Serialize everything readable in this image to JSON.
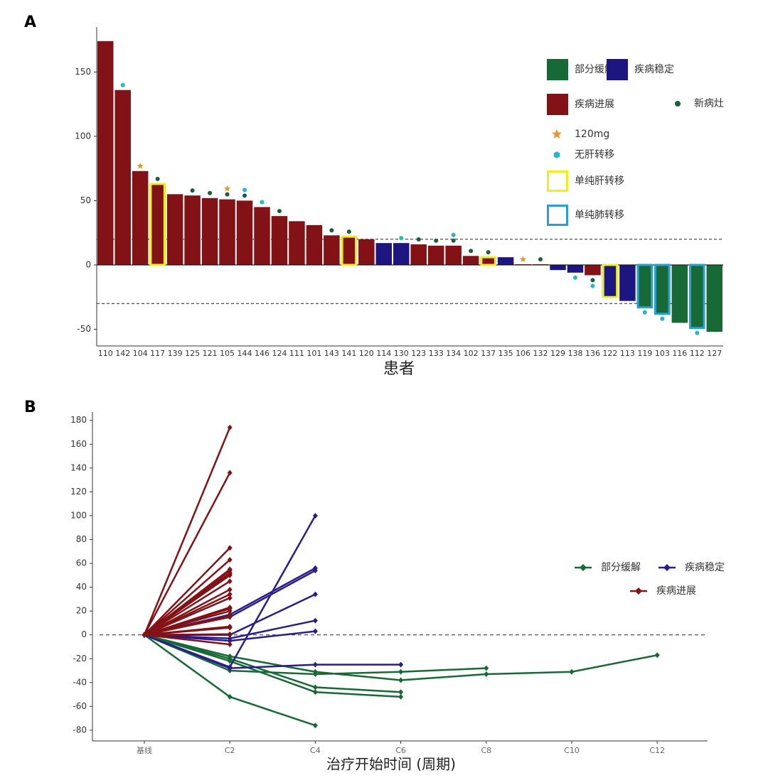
{
  "chart_data": [
    {
      "type": "waterfall",
      "panel_label": "A",
      "x_label": "患者",
      "categories": [
        "110",
        "142",
        "104",
        "117",
        "139",
        "125",
        "121",
        "105",
        "144",
        "146",
        "124",
        "111",
        "101",
        "143",
        "141",
        "120",
        "114",
        "130",
        "123",
        "133",
        "134",
        "102",
        "137",
        "135",
        "106",
        "132",
        "129",
        "138",
        "136",
        "122",
        "113",
        "119",
        "103",
        "116",
        "112",
        "127"
      ],
      "series": [
        {
          "name": "部分缓解",
          "color": "#176a35",
          "values": [
            null,
            null,
            null,
            null,
            null,
            null,
            null,
            null,
            null,
            null,
            null,
            null,
            null,
            null,
            null,
            null,
            null,
            null,
            null,
            null,
            null,
            null,
            null,
            null,
            null,
            null,
            null,
            null,
            null,
            null,
            null,
            -33,
            -38,
            -45,
            -49,
            -52
          ]
        },
        {
          "name": "疾病稳定",
          "color": "#1d1580",
          "values": [
            null,
            null,
            null,
            null,
            null,
            null,
            null,
            null,
            null,
            null,
            null,
            null,
            null,
            null,
            null,
            null,
            17,
            17,
            null,
            null,
            null,
            null,
            null,
            6,
            null,
            null,
            -4,
            -6,
            null,
            -25,
            -28,
            null,
            null,
            null,
            null,
            null
          ]
        },
        {
          "name": "疾病进展",
          "color": "#821216",
          "values": [
            174,
            136,
            73,
            63,
            55,
            54,
            52,
            51,
            50,
            45,
            38,
            34,
            31,
            23,
            22,
            20,
            null,
            null,
            16,
            15,
            15,
            7,
            6,
            null,
            0.5,
            0.5,
            null,
            null,
            -8,
            null,
            null,
            null,
            null,
            null,
            null,
            null
          ]
        }
      ],
      "markers": [
        {
          "name": "新病灶",
          "color": "#1b5e3a",
          "shape": "circle",
          "patients": [
            "117",
            "125",
            "121",
            "105",
            "144",
            "124",
            "143",
            "141",
            "123",
            "133",
            "134",
            "102",
            "137",
            "132",
            "136"
          ]
        },
        {
          "name": "120mg",
          "color": "#e8962e",
          "shape": "star",
          "patients": [
            "104",
            "105",
            "106"
          ]
        },
        {
          "name": "无肝转移",
          "color": "#2bb5c8",
          "shape": "hexagon",
          "patients": [
            "142",
            "144",
            "146",
            "130",
            "134",
            "138",
            "136",
            "119",
            "103",
            "112"
          ]
        }
      ],
      "boxes": [
        {
          "name": "单纯肝转移",
          "color": "#eef01e",
          "patients": [
            "117",
            "141",
            "137",
            "122"
          ]
        },
        {
          "name": "单纯肺转移",
          "color": "#2a9fd6",
          "patients": [
            "119",
            "103",
            "112"
          ]
        }
      ],
      "reference_lines": [
        20,
        -30
      ],
      "ylim": [
        -63,
        185
      ],
      "yticks": [
        -50,
        0,
        50,
        100,
        150
      ]
    },
    {
      "type": "line",
      "panel_label": "B",
      "x_label": "治疗开始时间 (周期)",
      "categories": [
        "基线",
        "C2",
        "C4",
        "C6",
        "C8",
        "C10",
        "C12"
      ],
      "series": [
        {
          "name": "部分缓解",
          "color": "#176a35",
          "lines": [
            [
              0,
              -52,
              -76,
              null,
              null,
              null,
              null
            ],
            [
              0,
              -20,
              -44,
              -48,
              null,
              null,
              null
            ],
            [
              0,
              -22,
              -48,
              -52,
              null,
              null,
              null
            ],
            [
              0,
              -30,
              -33,
              -31,
              -28,
              null,
              null
            ],
            [
              0,
              -18,
              -31,
              -38,
              -33,
              -31,
              -17
            ]
          ]
        },
        {
          "name": "疾病稳定",
          "color": "#2a1d8a",
          "lines": [
            [
              0,
              -27,
              100,
              null,
              null,
              null,
              null
            ],
            [
              0,
              17,
              56,
              null,
              null,
              null,
              null
            ],
            [
              0,
              15,
              54,
              null,
              null,
              null,
              null
            ],
            [
              0,
              0,
              34,
              null,
              null,
              null,
              null
            ],
            [
              0,
              -3,
              12,
              null,
              null,
              null,
              null
            ],
            [
              0,
              -5,
              3,
              null,
              null,
              null,
              null
            ],
            [
              0,
              -28,
              -25,
              -25,
              null,
              null,
              null
            ]
          ]
        },
        {
          "name": "疾病进展",
          "color": "#821216",
          "lines": [
            [
              0,
              174,
              null,
              null,
              null,
              null,
              null
            ],
            [
              0,
              136,
              null,
              null,
              null,
              null,
              null
            ],
            [
              0,
              73,
              null,
              null,
              null,
              null,
              null
            ],
            [
              0,
              63,
              null,
              null,
              null,
              null,
              null
            ],
            [
              0,
              55,
              null,
              null,
              null,
              null,
              null
            ],
            [
              0,
              54,
              null,
              null,
              null,
              null,
              null
            ],
            [
              0,
              52,
              null,
              null,
              null,
              null,
              null
            ],
            [
              0,
              51,
              null,
              null,
              null,
              null,
              null
            ],
            [
              0,
              50,
              null,
              null,
              null,
              null,
              null
            ],
            [
              0,
              45,
              null,
              null,
              null,
              null,
              null
            ],
            [
              0,
              38,
              null,
              null,
              null,
              null,
              null
            ],
            [
              0,
              34,
              null,
              null,
              null,
              null,
              null
            ],
            [
              0,
              31,
              null,
              null,
              null,
              null,
              null
            ],
            [
              0,
              23,
              null,
              null,
              null,
              null,
              null
            ],
            [
              0,
              22,
              null,
              null,
              null,
              null,
              null
            ],
            [
              0,
              20,
              null,
              null,
              null,
              null,
              null
            ],
            [
              0,
              16,
              null,
              null,
              null,
              null,
              null
            ],
            [
              0,
              15,
              null,
              null,
              null,
              null,
              null
            ],
            [
              0,
              15,
              null,
              null,
              null,
              null,
              null
            ],
            [
              0,
              7,
              null,
              null,
              null,
              null,
              null
            ],
            [
              0,
              6,
              null,
              null,
              null,
              null,
              null
            ],
            [
              0,
              0.5,
              null,
              null,
              null,
              null,
              null
            ],
            [
              0,
              0.5,
              null,
              null,
              null,
              null,
              null
            ],
            [
              0,
              -8,
              null,
              null,
              null,
              null,
              null
            ]
          ]
        }
      ],
      "reference_lines": [
        0
      ],
      "ylim": [
        -89,
        187
      ],
      "yticks": [
        -80,
        -60,
        -40,
        -20,
        0,
        20,
        40,
        60,
        80,
        100,
        120,
        140,
        160,
        180
      ]
    }
  ]
}
